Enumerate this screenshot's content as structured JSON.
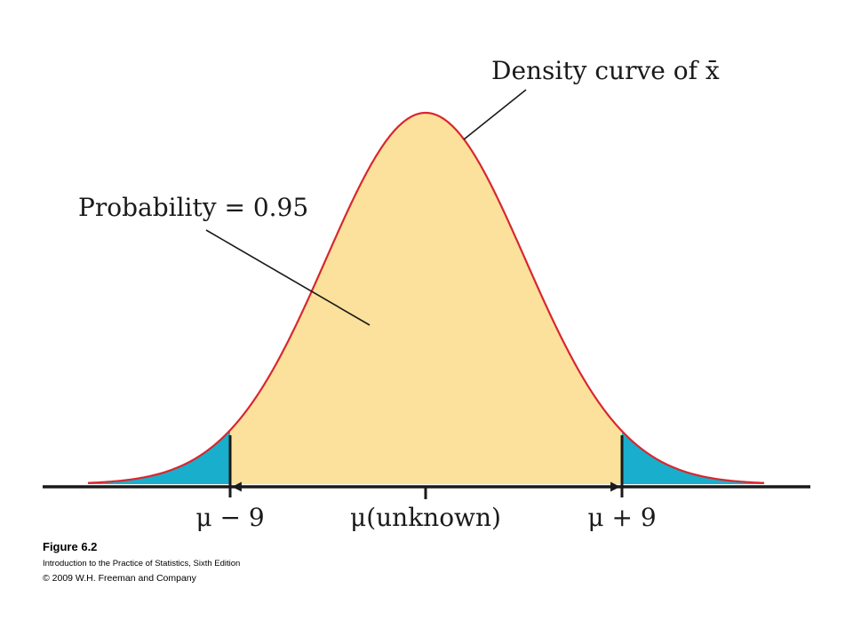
{
  "diagram": {
    "curve_label": "Density curve of x̄",
    "probability_label": "Probability = 0.95",
    "axis_labels": {
      "lower": "μ − 9",
      "center": "μ(unknown)",
      "upper": "μ + 9"
    },
    "colors": {
      "center_fill": "#fbe19b",
      "tail_fill": "#19aecb",
      "curve": "#d8272f",
      "axis": "#1a1a1a"
    }
  },
  "caption": {
    "figure": "Figure 6.2",
    "book": "Introduction to the Practice of Statistics, Sixth Edition",
    "copyright": "© 2009 W.H. Freeman and Company"
  }
}
